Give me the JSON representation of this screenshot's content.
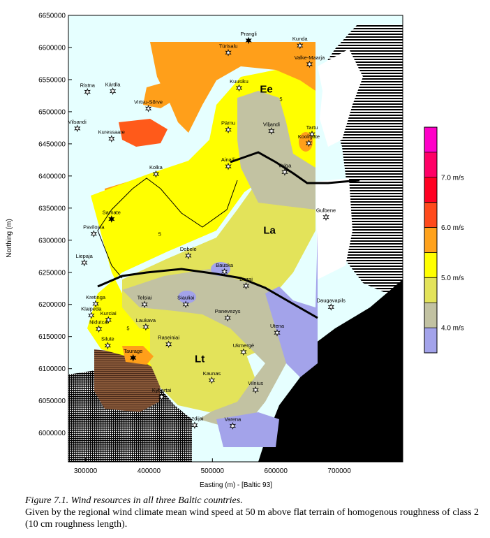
{
  "chart_data": {
    "type": "heatmap",
    "subtype": "filled contour map",
    "title": "",
    "xlabel": "Easting (m) - [Baltic 93]",
    "ylabel": "Northing (m)",
    "xlim": [
      273000,
      800000
    ],
    "ylim": [
      5955000,
      6650000
    ],
    "x_ticks": [
      300000,
      400000,
      500000,
      600000,
      700000
    ],
    "y_ticks": [
      6000000,
      6050000,
      6100000,
      6150000,
      6200000,
      6250000,
      6300000,
      6350000,
      6400000,
      6450000,
      6500000,
      6550000,
      6600000,
      6650000
    ],
    "x_tick_labels": [
      "300000",
      "400000",
      "500000",
      "600000",
      "700000"
    ],
    "y_tick_labels": [
      "6000000",
      "6050000",
      "6100000",
      "6150000",
      "6200000",
      "6250000",
      "6300000",
      "6350000",
      "6400000",
      "6450000",
      "6500000",
      "6550000",
      "6600000",
      "6650000"
    ],
    "colorbar": {
      "levels": [
        3.5,
        4.0,
        4.5,
        5.0,
        5.5,
        6.0,
        6.5,
        7.0,
        7.5,
        8.0
      ],
      "colors": [
        "#a3a3ea",
        "#c2c2a2",
        "#e3e35a",
        "#ffff00",
        "#ffa21c",
        "#ff4a1c",
        "#ff0022",
        "#ff0066",
        "#ff00c8"
      ],
      "labels": [
        "4.0 m/s",
        "5.0 m/s",
        "6.0 m/s",
        "7.0 m/s"
      ],
      "label_values": [
        4.0,
        5.0,
        6.0,
        7.0
      ]
    },
    "country_labels": [
      {
        "text": "Ee",
        "x": 585000,
        "y": 6530000
      },
      {
        "text": "La",
        "x": 590000,
        "y": 6310000
      },
      {
        "text": "Lt",
        "x": 480000,
        "y": 6110000
      }
    ],
    "contour_labels": [
      {
        "text": "5",
        "x": 608000,
        "y": 6517000
      },
      {
        "text": "5",
        "x": 417000,
        "y": 6307000
      },
      {
        "text": "5",
        "x": 367000,
        "y": 6160000
      }
    ],
    "stations": [
      {
        "name": "Prangli",
        "x": 557000,
        "y": 6611000
      },
      {
        "name": "Kunda",
        "x": 638000,
        "y": 6603000
      },
      {
        "name": "Türisalu",
        "x": 525000,
        "y": 6592000
      },
      {
        "name": "Valke-Maarja",
        "x": 653000,
        "y": 6574000
      },
      {
        "name": "Ristna",
        "x": 303000,
        "y": 6531000
      },
      {
        "name": "Kärdla",
        "x": 343000,
        "y": 6532000
      },
      {
        "name": "Kuusiku",
        "x": 542000,
        "y": 6537000
      },
      {
        "name": "Virtsu-Sõrve",
        "x": 399000,
        "y": 6505000
      },
      {
        "name": "Vilsandi",
        "x": 287000,
        "y": 6474000
      },
      {
        "name": "Kuressaare",
        "x": 341000,
        "y": 6458000
      },
      {
        "name": "Pärnu",
        "x": 525000,
        "y": 6472000
      },
      {
        "name": "Viljandi",
        "x": 593000,
        "y": 6470000
      },
      {
        "name": "Tartu",
        "x": 657000,
        "y": 6465000
      },
      {
        "name": "Kooligate",
        "x": 652000,
        "y": 6451000
      },
      {
        "name": "Kolka",
        "x": 411000,
        "y": 6403000
      },
      {
        "name": "Ainaži",
        "x": 525000,
        "y": 6415000
      },
      {
        "name": "Valga",
        "x": 614000,
        "y": 6406000
      },
      {
        "name": "Sarnate",
        "x": 341000,
        "y": 6333000
      },
      {
        "name": "Gulbene",
        "x": 679000,
        "y": 6336000
      },
      {
        "name": "Pavilosta",
        "x": 313000,
        "y": 6310000
      },
      {
        "name": "Liepaja",
        "x": 298000,
        "y": 6265000
      },
      {
        "name": "Dobele",
        "x": 462000,
        "y": 6276000
      },
      {
        "name": "Bauska",
        "x": 519000,
        "y": 6251000
      },
      {
        "name": "Birzai",
        "x": 553000,
        "y": 6229000
      },
      {
        "name": "Telsiai",
        "x": 393000,
        "y": 6200000
      },
      {
        "name": "Siauliai",
        "x": 458000,
        "y": 6200000
      },
      {
        "name": "Daugavapils",
        "x": 687000,
        "y": 6196000
      },
      {
        "name": "Kretinga",
        "x": 316000,
        "y": 6201000
      },
      {
        "name": "Klaipeda",
        "x": 309000,
        "y": 6183000
      },
      {
        "name": "Kurciai",
        "x": 336000,
        "y": 6176000
      },
      {
        "name": "Panevezys",
        "x": 524000,
        "y": 6179000
      },
      {
        "name": "Laukava",
        "x": 395000,
        "y": 6165000
      },
      {
        "name": "Nidutcai",
        "x": 321000,
        "y": 6162000
      },
      {
        "name": "Utena",
        "x": 602000,
        "y": 6156000
      },
      {
        "name": "Raseiniai",
        "x": 431000,
        "y": 6138000
      },
      {
        "name": "Silute",
        "x": 335000,
        "y": 6136000
      },
      {
        "name": "Ukmergė",
        "x": 549000,
        "y": 6126000
      },
      {
        "name": "Taurage",
        "x": 375000,
        "y": 6117000
      },
      {
        "name": "Kaunas",
        "x": 499000,
        "y": 6082000
      },
      {
        "name": "Kybartai",
        "x": 420000,
        "y": 6056000
      },
      {
        "name": "Vilnius",
        "x": 568000,
        "y": 6067000
      },
      {
        "name": "Lazdijai",
        "x": 472000,
        "y": 6012000
      },
      {
        "name": "Varena",
        "x": 532000,
        "y": 6011000
      }
    ]
  },
  "caption": {
    "title": "Figure 7.1. Wind resources in all three Baltic countries.",
    "text": "Given by the regional wind climate mean wind speed at 50 m above flat terrain of homogenous roughness of class 2 (10 cm roughness length)."
  }
}
